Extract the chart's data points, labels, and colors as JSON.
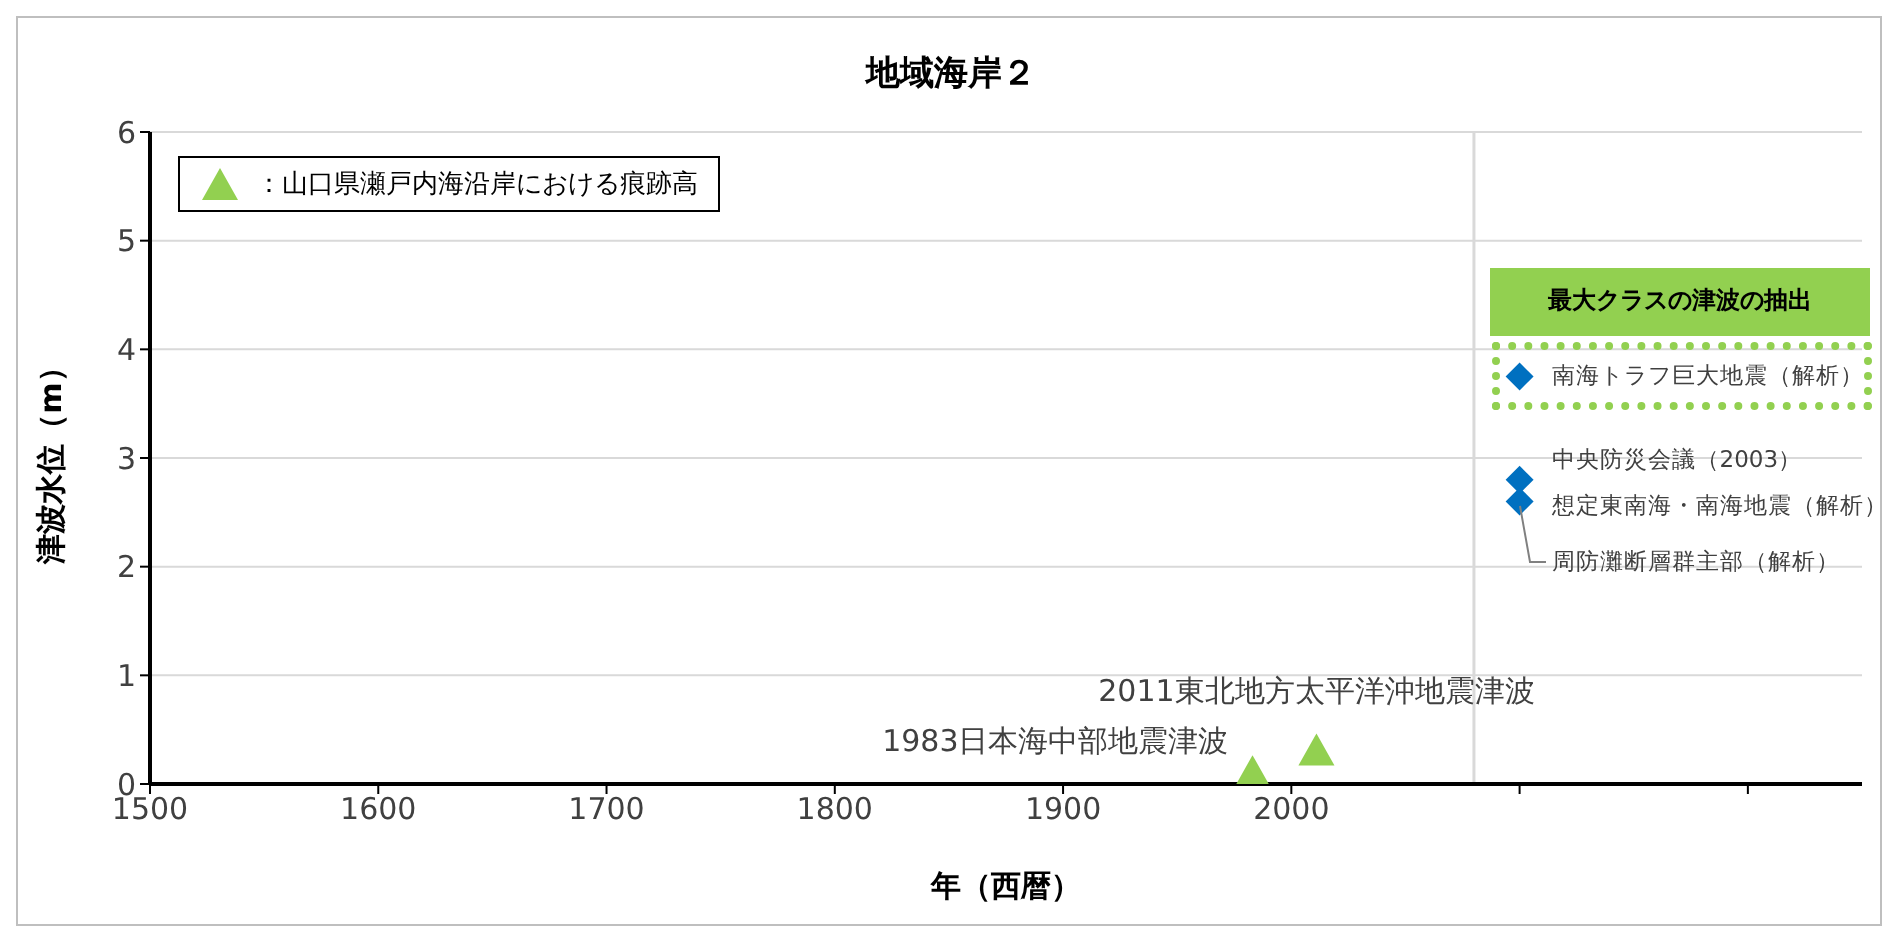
{
  "chart_data": {
    "type": "scatter",
    "title": "地域海岸２",
    "xlabel": "年（西暦）",
    "ylabel": "津波水位（m）",
    "xlim": [
      1500,
      2250
    ],
    "xticks": [
      1500,
      1600,
      1700,
      1800,
      1900,
      2000,
      {
        "value": 2100,
        "label": null
      },
      {
        "value": 2200,
        "label": null
      }
    ],
    "ylim": [
      0,
      6
    ],
    "yticks": [
      0,
      1,
      2,
      3,
      4,
      5,
      6
    ],
    "grid": "y",
    "legend": "top left",
    "series": [
      {
        "name": "：山口県瀬戸内海沿岸における痕跡高",
        "color": "#92d050",
        "marker": "triangle",
        "x": [
          1983,
          2011
        ],
        "values": [
          0.1,
          0.3
        ]
      },
      {
        "color": "#0070c0",
        "marker": "diamond",
        "x": [
          2100,
          2100,
          2100
        ],
        "values": [
          3.75,
          2.8,
          2.6
        ]
      }
    ],
    "ref_lines": [
      {
        "axis": "x",
        "value": 2080,
        "color": "#d9d9d9"
      }
    ],
    "annotations": [
      {
        "text": "2011東北地方太平洋沖地震津波",
        "x": 2011,
        "y": 0.3
      },
      {
        "text": "1983日本海中部地震津波",
        "x": 1983,
        "y": 0.1
      },
      "最大クラスの津波の抽出",
      {
        "text": "南海トラフ巨大地震（解析）",
        "x": 2100,
        "y": 3.75
      },
      {
        "text": "中央防災会議（2003）",
        "x": 2100,
        "y": 2.8
      },
      {
        "text": "想定東南海・南海地震（解析）",
        "x": 2100,
        "y": 2.6
      },
      {
        "text": "周防灘断層群主部（解析）",
        "x": 2100,
        "y": 2.6
      }
    ]
  }
}
